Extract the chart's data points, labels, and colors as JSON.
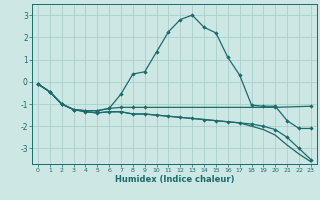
{
  "xlabel": "Humidex (Indice chaleur)",
  "ylabel": "",
  "background_color": "#cde8e4",
  "grid_color": "#aacfcb",
  "line_color": "#1a6b6b",
  "xlim": [
    -0.5,
    23.5
  ],
  "ylim": [
    -3.7,
    3.5
  ],
  "yticks": [
    -3,
    -2,
    -1,
    0,
    1,
    2,
    3
  ],
  "xticks": [
    0,
    1,
    2,
    3,
    4,
    5,
    6,
    7,
    8,
    9,
    10,
    11,
    12,
    13,
    14,
    15,
    16,
    17,
    18,
    19,
    20,
    21,
    22,
    23
  ],
  "series1_x": [
    0,
    1,
    2,
    3,
    4,
    5,
    6,
    7,
    8,
    9,
    10,
    11,
    12,
    13,
    14,
    15,
    16,
    17,
    18,
    19,
    20,
    21,
    22,
    23
  ],
  "series1_y": [
    -0.1,
    -0.45,
    -1.0,
    -1.25,
    -1.3,
    -1.3,
    -1.2,
    -0.55,
    0.35,
    0.45,
    1.35,
    2.25,
    2.8,
    3.0,
    2.45,
    2.2,
    1.1,
    0.3,
    -1.05,
    -1.1,
    -1.1,
    -1.75,
    -2.1,
    -2.1
  ],
  "series2_x": [
    0,
    1,
    2,
    3,
    4,
    5,
    6,
    7,
    8,
    9,
    20,
    23
  ],
  "series2_y": [
    -0.1,
    -0.45,
    -1.0,
    -1.25,
    -1.3,
    -1.3,
    -1.2,
    -1.15,
    -1.15,
    -1.15,
    -1.15,
    -1.1
  ],
  "series3_x": [
    0,
    1,
    2,
    3,
    4,
    5,
    6,
    7,
    8,
    9,
    10,
    11,
    12,
    13,
    14,
    15,
    16,
    17,
    18,
    19,
    20,
    21,
    22,
    23
  ],
  "series3_y": [
    -0.1,
    -0.45,
    -1.0,
    -1.25,
    -1.35,
    -1.4,
    -1.35,
    -1.35,
    -1.45,
    -1.45,
    -1.5,
    -1.55,
    -1.6,
    -1.65,
    -1.7,
    -1.75,
    -1.8,
    -1.85,
    -1.9,
    -2.0,
    -2.15,
    -2.5,
    -3.0,
    -3.5
  ],
  "series4_x": [
    0,
    1,
    2,
    3,
    4,
    5,
    6,
    7,
    8,
    9,
    10,
    11,
    12,
    13,
    14,
    15,
    16,
    17,
    18,
    19,
    20,
    21,
    22,
    23
  ],
  "series4_y": [
    -0.1,
    -0.45,
    -1.0,
    -1.25,
    -1.35,
    -1.4,
    -1.35,
    -1.35,
    -1.45,
    -1.45,
    -1.5,
    -1.55,
    -1.6,
    -1.65,
    -1.7,
    -1.75,
    -1.8,
    -1.85,
    -2.0,
    -2.15,
    -2.4,
    -2.85,
    -3.25,
    -3.6
  ]
}
